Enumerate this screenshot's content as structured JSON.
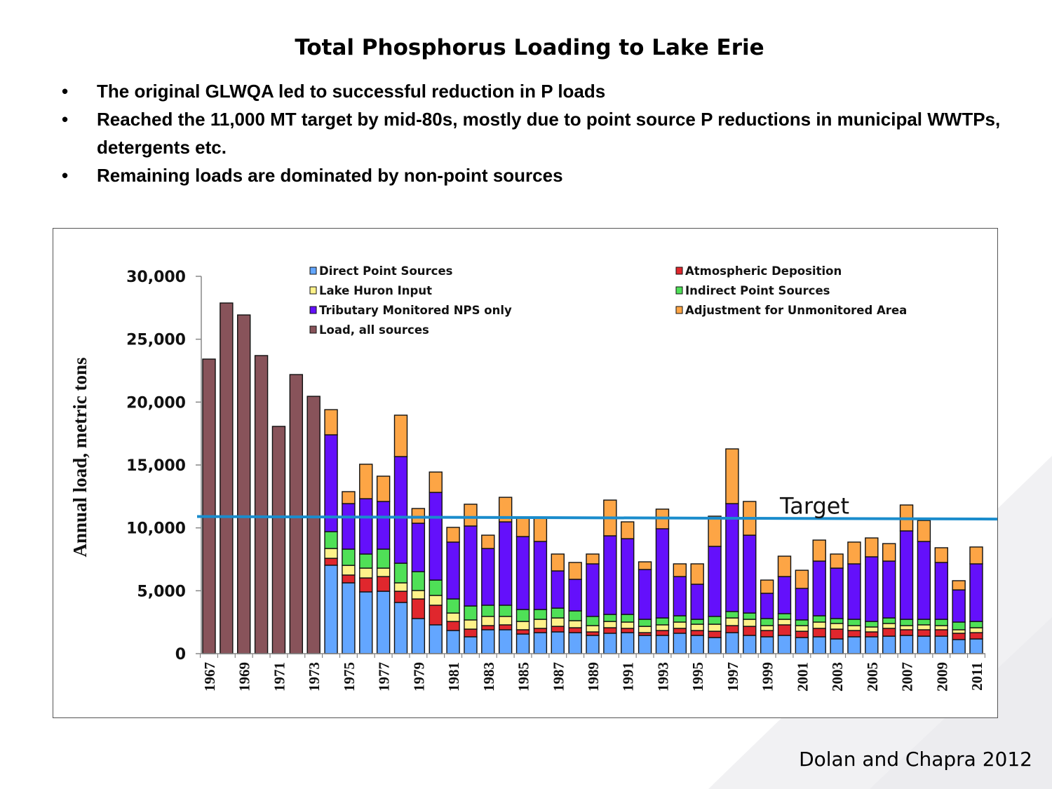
{
  "slide": {
    "title": "Total Phosphorus Loading to Lake Erie",
    "bullet_glyph": "•",
    "bullets": [
      "The original GLWQA led to successful reduction in P loads",
      "Reached the 11,000 MT target by mid-80s, mostly due to point source P reductions in municipal WWTPs, detergents etc.",
      "Remaining loads are dominated by non-point sources"
    ],
    "credit": "Dolan and Chapra 2012"
  },
  "chart_data": {
    "type": "bar",
    "stacked": true,
    "title": "",
    "xlabel": "",
    "ylabel": "Annual load, metric tons",
    "ylim": [
      0,
      30000
    ],
    "yticks": [
      0,
      5000,
      10000,
      15000,
      20000,
      25000,
      30000
    ],
    "ytick_labels": [
      "0",
      "5,000",
      "10,000",
      "15,000",
      "20,000",
      "25,000",
      "30,000"
    ],
    "grid": false,
    "legend_position": "top",
    "categories": [
      "1967",
      "1968",
      "1969",
      "1970",
      "1971",
      "1972",
      "1973",
      "1974",
      "1975",
      "1976",
      "1977",
      "1978",
      "1979",
      "1980",
      "1981",
      "1982",
      "1983",
      "1984",
      "1985",
      "1986",
      "1987",
      "1988",
      "1989",
      "1990",
      "1991",
      "1992",
      "1993",
      "1994",
      "1995",
      "1996",
      "1997",
      "1998",
      "1999",
      "2000",
      "2001",
      "2002",
      "2003",
      "2004",
      "2005",
      "2006",
      "2007",
      "2008",
      "2009",
      "2010",
      "2011"
    ],
    "xtick_labels_shown": [
      "1967",
      "1969",
      "1971",
      "1973",
      "1975",
      "1977",
      "1979",
      "1981",
      "1983",
      "1985",
      "1987",
      "1989",
      "1991",
      "1993",
      "1995",
      "1997",
      "1999",
      "2001",
      "2003",
      "2005",
      "2007",
      "2009",
      "2011"
    ],
    "series": [
      {
        "name": "Direct Point Sources",
        "color": "#63a6ff",
        "values": [
          null,
          null,
          null,
          null,
          null,
          null,
          null,
          7030,
          5630,
          4910,
          4960,
          4070,
          2790,
          2290,
          1840,
          1340,
          1900,
          1900,
          1560,
          1670,
          1730,
          1670,
          1450,
          1620,
          1670,
          1450,
          1450,
          1620,
          1450,
          1280,
          1670,
          1450,
          1340,
          1450,
          1280,
          1340,
          1170,
          1340,
          1340,
          1390,
          1450,
          1390,
          1390,
          1120,
          1170
        ]
      },
      {
        "name": "Atmospheric Deposition",
        "color": "#e0272d",
        "values": [
          null,
          null,
          null,
          null,
          null,
          null,
          null,
          550,
          620,
          1110,
          1170,
          890,
          1560,
          1560,
          720,
          610,
          330,
          390,
          340,
          340,
          440,
          390,
          280,
          440,
          340,
          220,
          390,
          390,
          390,
          500,
          560,
          720,
          500,
          840,
          500,
          670,
          780,
          500,
          390,
          620,
          450,
          510,
          510,
          500,
          500
        ]
      },
      {
        "name": "Lake Huron Input",
        "color": "#fff28a",
        "values": [
          null,
          null,
          null,
          null,
          null,
          null,
          null,
          780,
          770,
          780,
          670,
          670,
          670,
          780,
          670,
          730,
          730,
          670,
          660,
          720,
          670,
          560,
          500,
          500,
          500,
          500,
          450,
          500,
          500,
          560,
          610,
          560,
          390,
          440,
          450,
          500,
          450,
          390,
          390,
          390,
          330,
          390,
          330,
          280,
          390
        ]
      },
      {
        "name": "Indirect Point Sources",
        "color": "#4fe057",
        "values": [
          null,
          null,
          null,
          null,
          null,
          null,
          null,
          1340,
          1290,
          1120,
          1510,
          1560,
          1500,
          1220,
          1120,
          1110,
          890,
          890,
          950,
          780,
          780,
          780,
          730,
          560,
          610,
          560,
          550,
          500,
          390,
          620,
          510,
          500,
          560,
          450,
          450,
          500,
          390,
          500,
          440,
          440,
          500,
          440,
          500,
          610,
          500
        ]
      },
      {
        "name": "Tributary Monitored NPS only",
        "color": "#6410fb",
        "values": [
          null,
          null,
          null,
          null,
          null,
          null,
          null,
          7700,
          3620,
          4400,
          3790,
          8480,
          3850,
          6970,
          4520,
          6360,
          4510,
          6630,
          5800,
          5410,
          2960,
          2510,
          4180,
          6250,
          6020,
          3960,
          7090,
          3120,
          2790,
          5570,
          8580,
          6190,
          2010,
          2950,
          2510,
          4350,
          4010,
          4410,
          5140,
          4520,
          7030,
          6190,
          4520,
          2560,
          4580
        ]
      },
      {
        "name": "Adjustment for Unmonitored Area",
        "color": "#fda545",
        "values": [
          null,
          null,
          null,
          null,
          null,
          null,
          null,
          2000,
          950,
          2740,
          2010,
          3290,
          1170,
          1620,
          1170,
          1730,
          1060,
          1950,
          1450,
          1840,
          1340,
          1340,
          780,
          2840,
          1340,
          610,
          1560,
          1010,
          1620,
          2400,
          4350,
          2680,
          1050,
          1620,
          1440,
          1670,
          1120,
          1730,
          1500,
          1390,
          2060,
          1670,
          1170,
          730,
          1340
        ]
      },
      {
        "name": "Load, all sources",
        "color": "#88535a",
        "values": [
          23420,
          27880,
          26930,
          23700,
          18070,
          22190,
          20460,
          null,
          null,
          null,
          null,
          null,
          null,
          null,
          null,
          null,
          null,
          null,
          null,
          null,
          null,
          null,
          null,
          null,
          null,
          null,
          null,
          null,
          null,
          null,
          null,
          null,
          null,
          null,
          null,
          null,
          null,
          null,
          null,
          null,
          null,
          null,
          null,
          null,
          null
        ]
      }
    ],
    "annotations": [
      {
        "type": "line",
        "label": "Target",
        "color": "#1a8ccc",
        "y_start": 10900,
        "y_end": 10700
      }
    ]
  }
}
